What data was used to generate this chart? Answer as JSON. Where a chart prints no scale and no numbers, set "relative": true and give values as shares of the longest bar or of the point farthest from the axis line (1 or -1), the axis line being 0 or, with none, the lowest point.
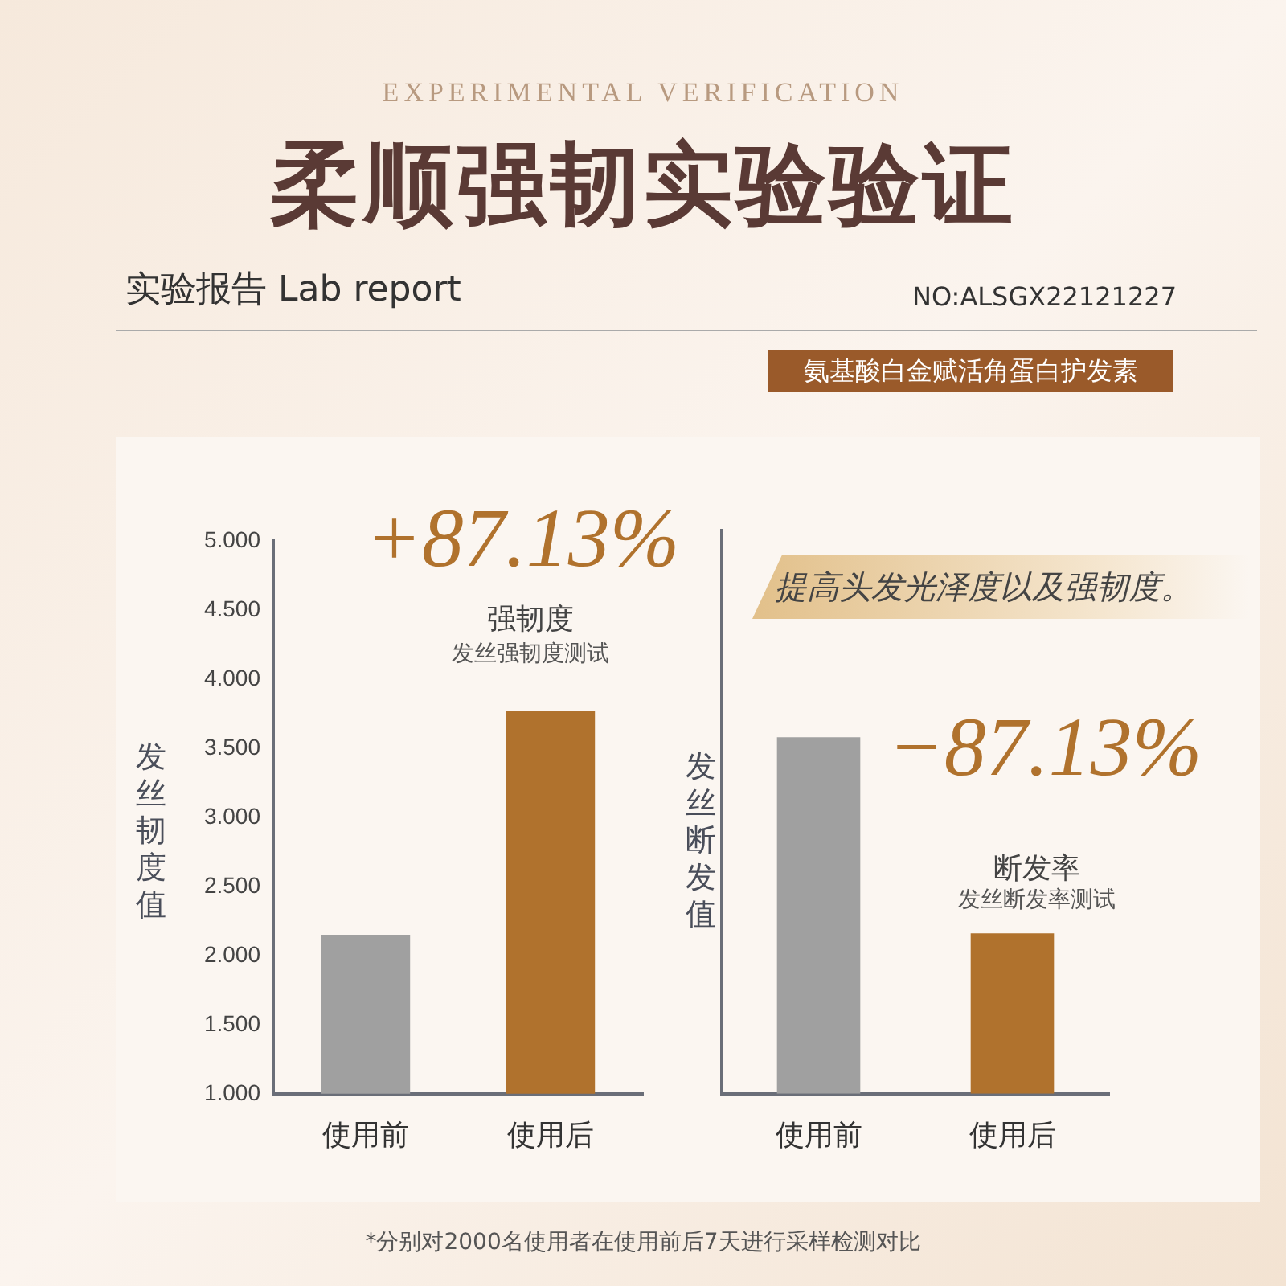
{
  "chart_data": [
    {
      "type": "bar",
      "title": "柔顺强韧实验验证",
      "subtitle": "EXPERIMENTAL VERIFICATION",
      "ylabel": "发丝韧度值",
      "categories": [
        "使用前",
        "使用后"
      ],
      "values": [
        2.15,
        3.77
      ],
      "colors": [
        "#a0a0a0",
        "#b0722d"
      ],
      "ylim": [
        1,
        5
      ],
      "yticks": [
        {
          "value": 1,
          "label": "1.000"
        },
        {
          "value": 1.5,
          "label": "1.500"
        },
        {
          "value": 2,
          "label": "2.000"
        },
        {
          "value": 2.5,
          "label": "2.500"
        },
        {
          "value": 3,
          "label": "3.000"
        },
        {
          "value": 3.5,
          "label": "3.500"
        },
        {
          "value": 4,
          "label": "4.000"
        },
        {
          "value": 4.5,
          "label": "4.500"
        },
        {
          "value": 5,
          "label": "5.000"
        }
      ],
      "grid": false,
      "legend": false,
      "annotations": [
        "实验报告 Lab report",
        "NO:ALSGX22121227",
        "氨基酸白金赋活角蛋白护发素",
        "+87.13%",
        "强韧度",
        "发丝强韧度测试",
        "*分别对2000名使用者在使用前后7天进行采样检测对比"
      ]
    },
    {
      "type": "bar",
      "ylabel": "发丝断发值",
      "categories": [
        "使用前",
        "使用后"
      ],
      "values": [
        1,
        0.45
      ],
      "colors": [
        "#a0a0a0",
        "#b0722d"
      ],
      "relative": true,
      "grid": false,
      "legend": false,
      "annotations": [
        "提高头发光泽度以及强韧度。",
        "−87.13%",
        "断发率",
        "发丝断发率测试"
      ]
    }
  ]
}
